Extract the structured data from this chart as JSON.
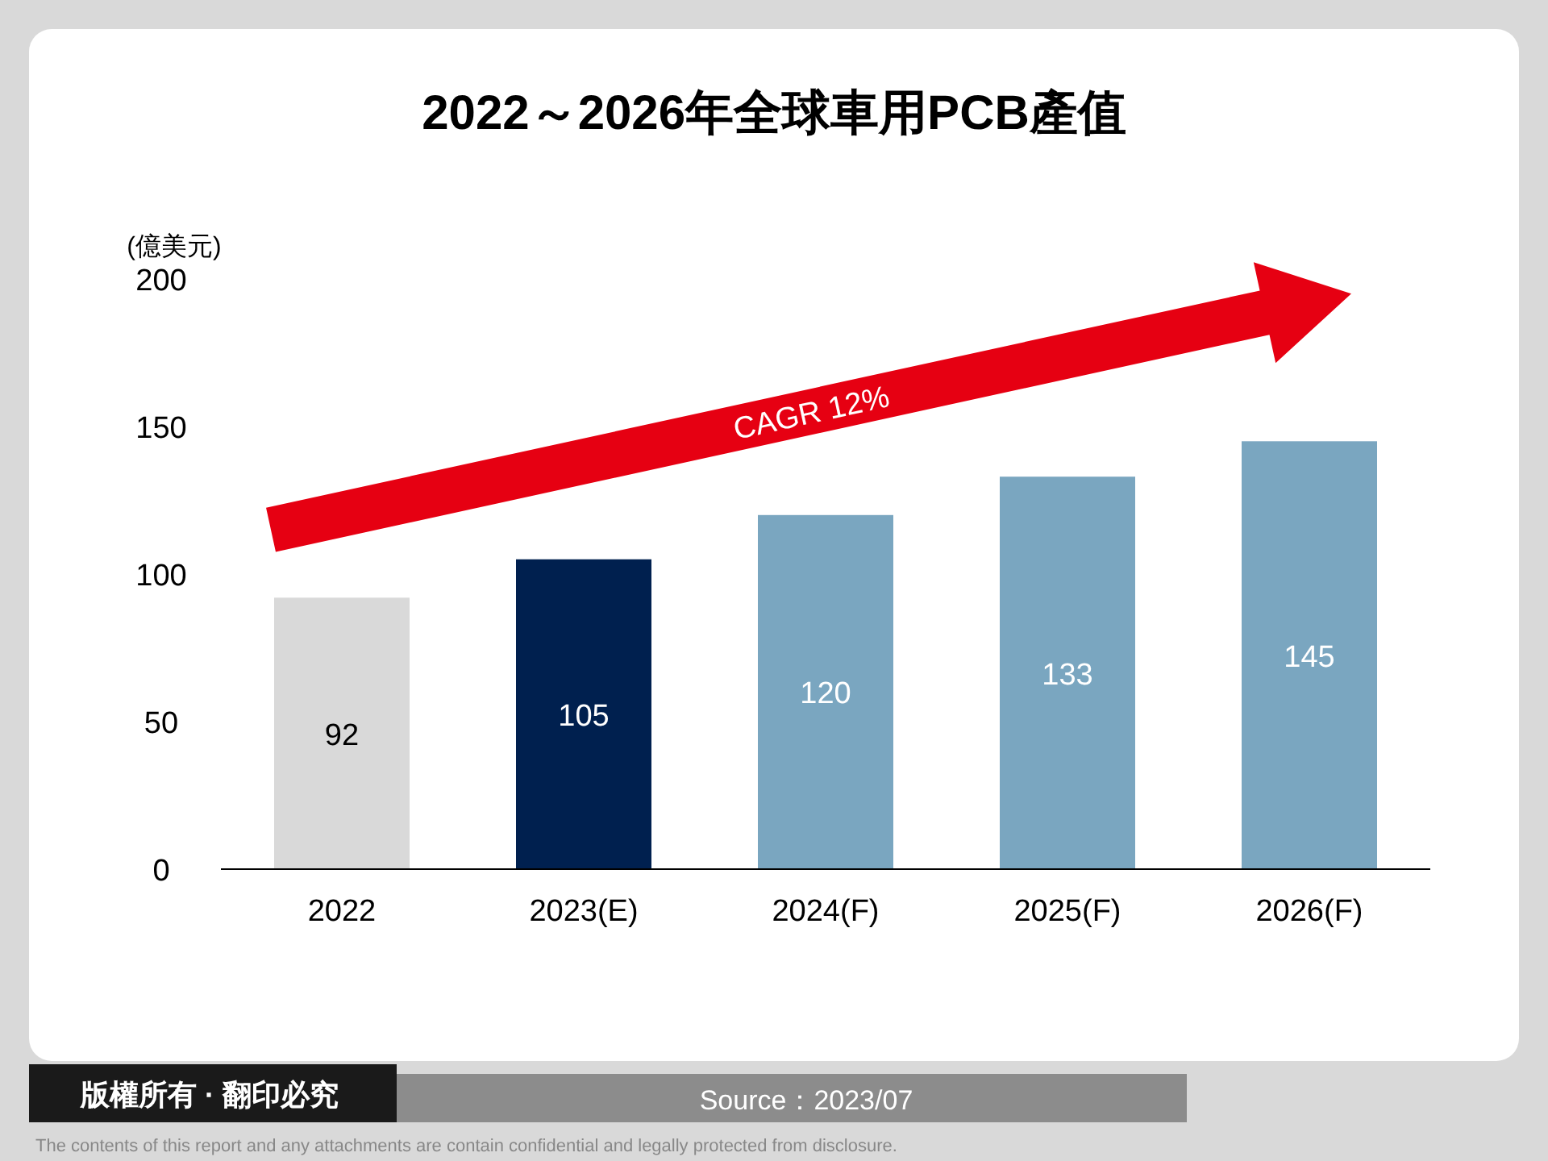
{
  "chart_data": {
    "type": "bar",
    "title": "2022～2026年全球車用PCB產值",
    "ylabel": "(億美元)",
    "categories": [
      "2022",
      "2023(E)",
      "2024(F)",
      "2025(F)",
      "2026(F)"
    ],
    "values": [
      92,
      105,
      120,
      133,
      145
    ],
    "colors": [
      "#d9d9d9",
      "#00204f",
      "#7aa6c0",
      "#7aa6c0",
      "#7aa6c0"
    ],
    "ylim": [
      0,
      200
    ],
    "yticks": [
      0,
      50,
      100,
      150,
      200
    ],
    "data_labels": true,
    "annotations": [
      "CAGR 12%",
      "版權所有 · 翻印必究",
      "Source：2023/07",
      "The contents of this report and any attachments are contain confidential and legally protected from disclosure."
    ]
  }
}
